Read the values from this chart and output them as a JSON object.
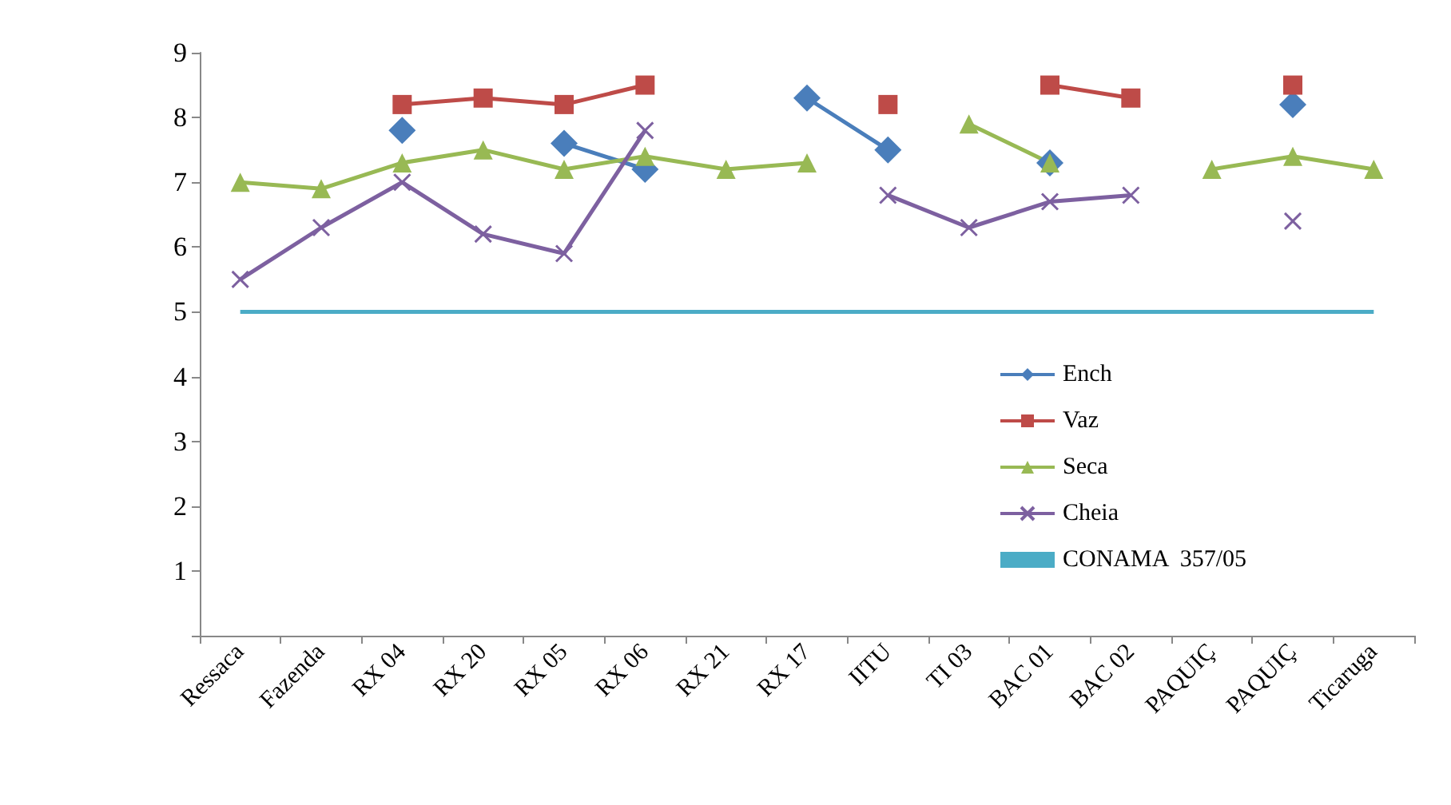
{
  "chart_data": {
    "type": "line",
    "categories": [
      "Ressaca",
      "Fazenda",
      "RX 04",
      "RX 20",
      "RX 05",
      "RX 06",
      "RX 21",
      "RX 17",
      "IITU",
      "TI 03",
      "BAC 01",
      "BAC 02",
      "PAQUIÇ",
      "PAQUIÇ",
      "Ticaruga"
    ],
    "series": [
      {
        "name": "Ench",
        "color": "#4a7ebb",
        "marker": "diamond",
        "values": [
          null,
          null,
          7.8,
          null,
          7.6,
          7.2,
          null,
          8.3,
          7.5,
          null,
          7.3,
          null,
          null,
          8.2,
          null
        ]
      },
      {
        "name": "Vaz",
        "color": "#be4b48",
        "marker": "square",
        "values": [
          null,
          null,
          8.2,
          8.3,
          8.2,
          8.5,
          null,
          null,
          8.2,
          null,
          8.5,
          8.3,
          null,
          8.5,
          null
        ]
      },
      {
        "name": "Seca",
        "color": "#98b954",
        "marker": "triangle",
        "values": [
          7.0,
          6.9,
          7.3,
          7.5,
          7.2,
          7.4,
          7.2,
          7.3,
          null,
          7.9,
          7.3,
          null,
          7.2,
          7.4,
          7.2
        ]
      },
      {
        "name": "Cheia",
        "color": "#7d60a0",
        "marker": "cross",
        "values": [
          5.5,
          6.3,
          7.0,
          6.2,
          5.9,
          7.8,
          null,
          null,
          6.8,
          6.3,
          6.7,
          6.8,
          null,
          6.4,
          null
        ]
      },
      {
        "name": "CONAMA  357/05",
        "color": "#4bacc6",
        "marker": "none",
        "values": [
          5,
          5,
          5,
          5,
          5,
          5,
          5,
          5,
          5,
          5,
          5,
          5,
          5,
          5,
          5
        ]
      }
    ],
    "ylim": [
      0,
      9
    ],
    "yticks": [
      {
        "value": 0,
        "label": null
      },
      1,
      2,
      3,
      4,
      5,
      6,
      7,
      8,
      9
    ],
    "grid": false,
    "legend": "bottom right"
  }
}
